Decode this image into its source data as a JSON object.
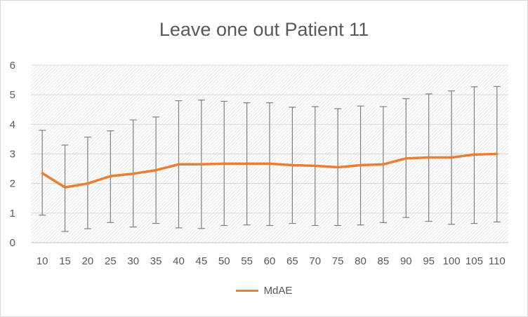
{
  "chart_data": {
    "type": "line",
    "title": "Leave one out Patient  11",
    "xlabel": "",
    "ylabel": "",
    "ylim": [
      0,
      6
    ],
    "yticks": [
      "0",
      "1",
      "2",
      "3",
      "4",
      "5",
      "6"
    ],
    "categories": [
      "10",
      "15",
      "20",
      "25",
      "30",
      "35",
      "40",
      "45",
      "50",
      "55",
      "60",
      "65",
      "70",
      "75",
      "80",
      "85",
      "90",
      "95",
      "100",
      "105",
      "110"
    ],
    "series": [
      {
        "name": "MdAE",
        "color": "#ed7d31",
        "values": [
          2.35,
          1.87,
          2.0,
          2.25,
          2.33,
          2.45,
          2.65,
          2.65,
          2.67,
          2.67,
          2.67,
          2.62,
          2.6,
          2.55,
          2.62,
          2.65,
          2.85,
          2.88,
          2.88,
          2.98,
          3.0
        ],
        "error_low": [
          0.93,
          0.38,
          0.47,
          0.68,
          0.53,
          0.65,
          0.5,
          0.48,
          0.58,
          0.6,
          0.58,
          0.65,
          0.58,
          0.58,
          0.6,
          0.68,
          0.85,
          0.72,
          0.62,
          0.65,
          0.7
        ],
        "error_high": [
          3.8,
          3.3,
          3.57,
          3.78,
          4.15,
          4.25,
          4.8,
          4.82,
          4.78,
          4.73,
          4.73,
          4.58,
          4.6,
          4.53,
          4.62,
          4.6,
          4.87,
          5.03,
          5.13,
          5.27,
          5.28
        ]
      }
    ],
    "error_bar_color": "#7f7f7f",
    "grid": true,
    "plot_background": "diagonal-hatch",
    "legend_position": "bottom"
  }
}
